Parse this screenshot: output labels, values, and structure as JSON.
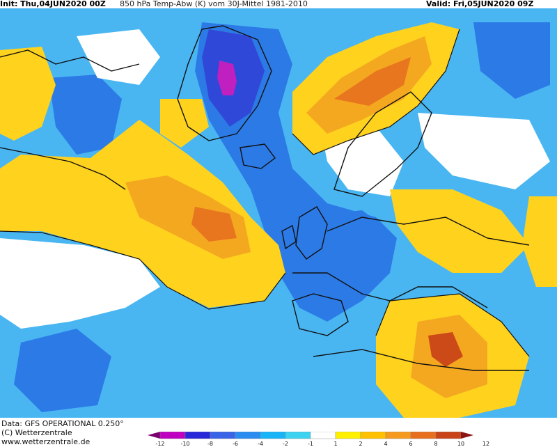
{
  "header": {
    "init": "Init: Thu,04JUN2020 00Z",
    "title": "850 hPa Temp-Abw (K) vom 30J-Mittel 1981-2010",
    "valid": "Valid: Fri,05JUN2020 09Z"
  },
  "footer": {
    "data_source": "Data: GFS OPERATIONAL 0.250°",
    "copyright": "(C) Wetterzentrale",
    "url": "www.wetterzentrale.de"
  },
  "legend": {
    "labels": [
      "-12",
      "-10",
      "-8",
      "-6",
      "-4",
      "-2",
      "-1",
      "1",
      "2",
      "4",
      "6",
      "8",
      "10",
      "12"
    ],
    "colors": [
      "#7a0070",
      "#c000c0",
      "#2828d8",
      "#3a64e8",
      "#2a8cf0",
      "#18b4f8",
      "#3cd2f0",
      "#ffffff",
      "#fff000",
      "#ffc000",
      "#f59a1e",
      "#e86f1e",
      "#c84418",
      "#8c1414"
    ]
  },
  "map_colors": {
    "ocean_base": "#49b6f2",
    "strong_cold": "#2c7ae6",
    "very_cold": "#3048d8",
    "extreme_cold": "#c020c0",
    "neutral": "#ffffff",
    "warm": "#ffd21e",
    "warmer": "#f4a820",
    "hot": "#e8761e",
    "hottest": "#cc4a18",
    "coast": "#111111"
  }
}
